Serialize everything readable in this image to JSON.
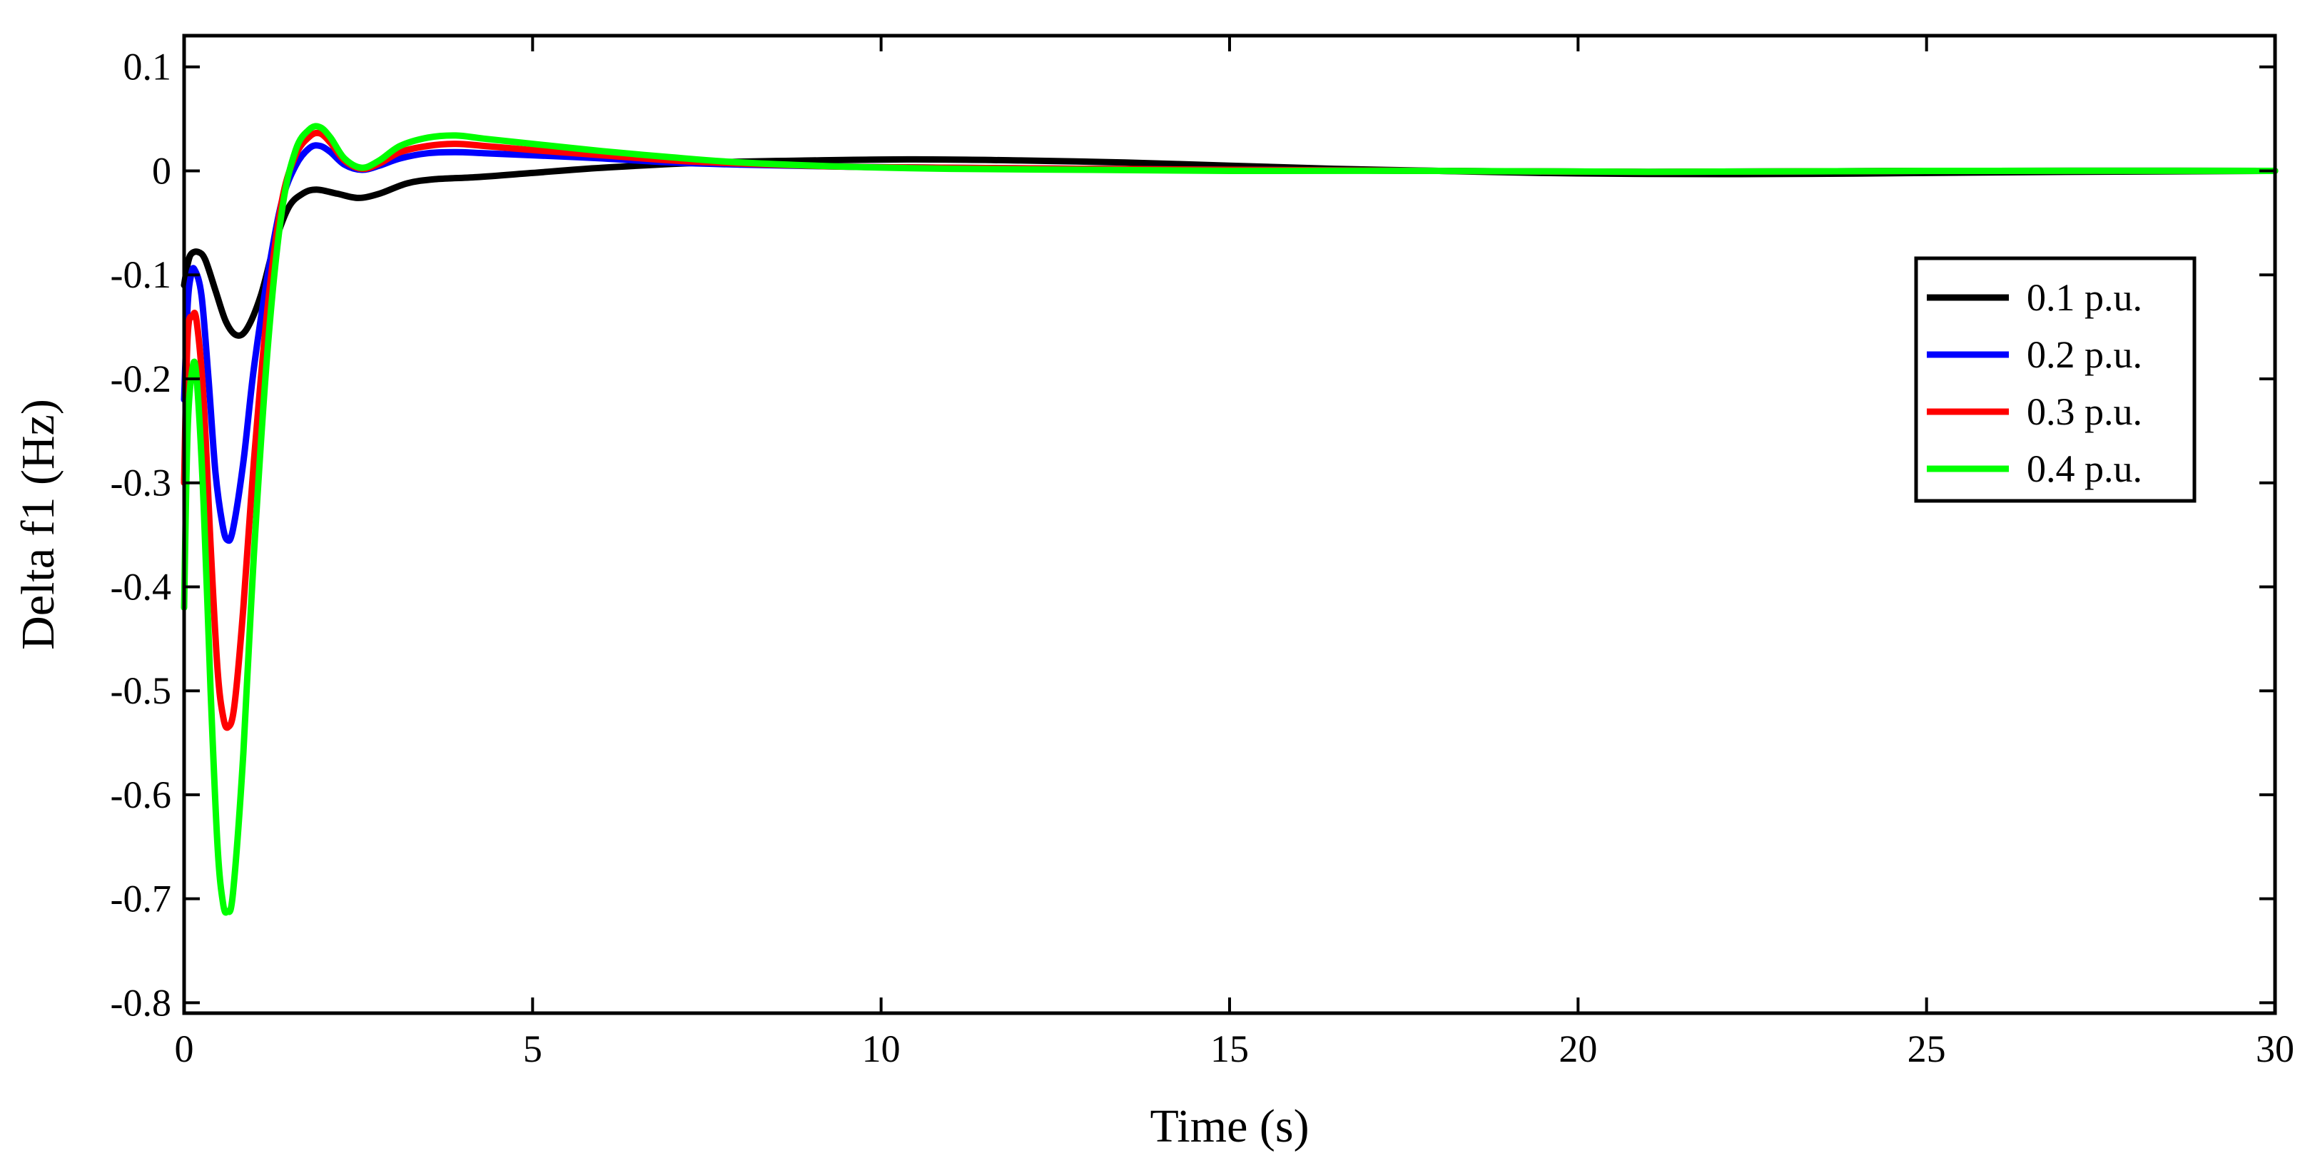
{
  "chart_data": {
    "type": "line",
    "title": "",
    "xlabel": "Time (s)",
    "ylabel": "Delta f1 (Hz)",
    "xlim": [
      0,
      30
    ],
    "ylim": [
      -0.81,
      0.13
    ],
    "xticks": [
      0,
      5,
      10,
      15,
      20,
      25,
      30
    ],
    "xtick_labels": [
      "0",
      "5",
      "10",
      "15",
      "20",
      "25",
      "30"
    ],
    "yticks": [
      0.1,
      0,
      -0.1,
      -0.2,
      -0.3,
      -0.4,
      -0.5,
      -0.6,
      -0.7,
      -0.8
    ],
    "ytick_labels": [
      "0.1",
      "0",
      "-0.1",
      "-0.2",
      "-0.3",
      "-0.4",
      "-0.5",
      "-0.6",
      "-0.7",
      "-0.8"
    ],
    "grid": false,
    "legend_position": "right",
    "series": [
      {
        "name": "0.1 p.u.",
        "color": "#000000",
        "points": [
          [
            0,
            -0.11
          ],
          [
            0.05,
            -0.09
          ],
          [
            0.1,
            -0.08
          ],
          [
            0.2,
            -0.078
          ],
          [
            0.3,
            -0.085
          ],
          [
            0.45,
            -0.115
          ],
          [
            0.6,
            -0.145
          ],
          [
            0.75,
            -0.158
          ],
          [
            0.9,
            -0.152
          ],
          [
            1.1,
            -0.12
          ],
          [
            1.3,
            -0.07
          ],
          [
            1.5,
            -0.035
          ],
          [
            1.7,
            -0.022
          ],
          [
            1.9,
            -0.018
          ],
          [
            2.2,
            -0.022
          ],
          [
            2.5,
            -0.026
          ],
          [
            2.8,
            -0.022
          ],
          [
            3.2,
            -0.012
          ],
          [
            3.6,
            -0.008
          ],
          [
            4.2,
            -0.006
          ],
          [
            5,
            -0.002
          ],
          [
            6,
            0.003
          ],
          [
            7.5,
            0.008
          ],
          [
            9,
            0.01
          ],
          [
            10.5,
            0.011
          ],
          [
            12,
            0.01
          ],
          [
            13.5,
            0.008
          ],
          [
            15,
            0.005
          ],
          [
            16.5,
            0.002
          ],
          [
            18,
            0
          ],
          [
            19.5,
            -0.002
          ],
          [
            21,
            -0.003
          ],
          [
            23,
            -0.003
          ],
          [
            25,
            -0.002
          ],
          [
            27,
            -0.001
          ],
          [
            30,
            0
          ]
        ]
      },
      {
        "name": "0.2 p.u.",
        "color": "#0000ff",
        "points": [
          [
            0,
            -0.22
          ],
          [
            0.05,
            -0.13
          ],
          [
            0.1,
            -0.1
          ],
          [
            0.15,
            -0.095
          ],
          [
            0.25,
            -0.12
          ],
          [
            0.35,
            -0.2
          ],
          [
            0.45,
            -0.29
          ],
          [
            0.55,
            -0.34
          ],
          [
            0.62,
            -0.355
          ],
          [
            0.7,
            -0.345
          ],
          [
            0.85,
            -0.28
          ],
          [
            1.0,
            -0.19
          ],
          [
            1.2,
            -0.1
          ],
          [
            1.4,
            -0.03
          ],
          [
            1.6,
            0.005
          ],
          [
            1.8,
            0.022
          ],
          [
            1.95,
            0.024
          ],
          [
            2.1,
            0.018
          ],
          [
            2.3,
            0.006
          ],
          [
            2.55,
            0.001
          ],
          [
            2.8,
            0.005
          ],
          [
            3.1,
            0.012
          ],
          [
            3.5,
            0.017
          ],
          [
            3.9,
            0.018
          ],
          [
            4.3,
            0.017
          ],
          [
            5,
            0.015
          ],
          [
            6,
            0.012
          ],
          [
            7,
            0.008
          ],
          [
            8,
            0.006
          ],
          [
            9.5,
            0.004
          ],
          [
            11,
            0.003
          ],
          [
            13,
            0.002
          ],
          [
            15,
            0.001
          ],
          [
            18,
            0
          ],
          [
            21,
            -0.001
          ],
          [
            25,
            0
          ],
          [
            30,
            0
          ]
        ]
      },
      {
        "name": "0.3 p.u.",
        "color": "#ff0000",
        "points": [
          [
            0,
            -0.3
          ],
          [
            0.05,
            -0.16
          ],
          [
            0.12,
            -0.14
          ],
          [
            0.18,
            -0.145
          ],
          [
            0.28,
            -0.22
          ],
          [
            0.38,
            -0.36
          ],
          [
            0.48,
            -0.48
          ],
          [
            0.56,
            -0.525
          ],
          [
            0.63,
            -0.535
          ],
          [
            0.72,
            -0.515
          ],
          [
            0.85,
            -0.42
          ],
          [
            1.0,
            -0.28
          ],
          [
            1.2,
            -0.13
          ],
          [
            1.4,
            -0.03
          ],
          [
            1.6,
            0.015
          ],
          [
            1.8,
            0.033
          ],
          [
            1.95,
            0.036
          ],
          [
            2.1,
            0.027
          ],
          [
            2.3,
            0.01
          ],
          [
            2.55,
            0.002
          ],
          [
            2.8,
            0.007
          ],
          [
            3.1,
            0.018
          ],
          [
            3.5,
            0.024
          ],
          [
            3.9,
            0.026
          ],
          [
            4.3,
            0.024
          ],
          [
            5,
            0.02
          ],
          [
            6,
            0.015
          ],
          [
            7,
            0.01
          ],
          [
            8,
            0.007
          ],
          [
            9.5,
            0.004
          ],
          [
            11,
            0.003
          ],
          [
            13,
            0.002
          ],
          [
            15,
            0.001
          ],
          [
            18,
            0
          ],
          [
            21,
            -0.001
          ],
          [
            25,
            0
          ],
          [
            30,
            0
          ]
        ]
      },
      {
        "name": "0.4 p.u.",
        "color": "#00ff00",
        "points": [
          [
            0,
            -0.42
          ],
          [
            0.05,
            -0.25
          ],
          [
            0.12,
            -0.19
          ],
          [
            0.18,
            -0.2
          ],
          [
            0.28,
            -0.32
          ],
          [
            0.38,
            -0.5
          ],
          [
            0.48,
            -0.65
          ],
          [
            0.56,
            -0.705
          ],
          [
            0.62,
            -0.712
          ],
          [
            0.7,
            -0.695
          ],
          [
            0.85,
            -0.56
          ],
          [
            1.0,
            -0.37
          ],
          [
            1.2,
            -0.17
          ],
          [
            1.4,
            -0.04
          ],
          [
            1.6,
            0.02
          ],
          [
            1.8,
            0.04
          ],
          [
            1.95,
            0.042
          ],
          [
            2.1,
            0.032
          ],
          [
            2.3,
            0.012
          ],
          [
            2.55,
            0.003
          ],
          [
            2.8,
            0.01
          ],
          [
            3.1,
            0.024
          ],
          [
            3.5,
            0.032
          ],
          [
            3.9,
            0.034
          ],
          [
            4.3,
            0.031
          ],
          [
            5,
            0.026
          ],
          [
            6,
            0.019
          ],
          [
            7,
            0.013
          ],
          [
            8,
            0.008
          ],
          [
            9.5,
            0.004
          ],
          [
            11,
            0.002
          ],
          [
            13,
            0.001
          ],
          [
            15,
            0
          ],
          [
            18,
            0
          ],
          [
            21,
            -0.001
          ],
          [
            25,
            0
          ],
          [
            30,
            0
          ]
        ]
      }
    ]
  }
}
